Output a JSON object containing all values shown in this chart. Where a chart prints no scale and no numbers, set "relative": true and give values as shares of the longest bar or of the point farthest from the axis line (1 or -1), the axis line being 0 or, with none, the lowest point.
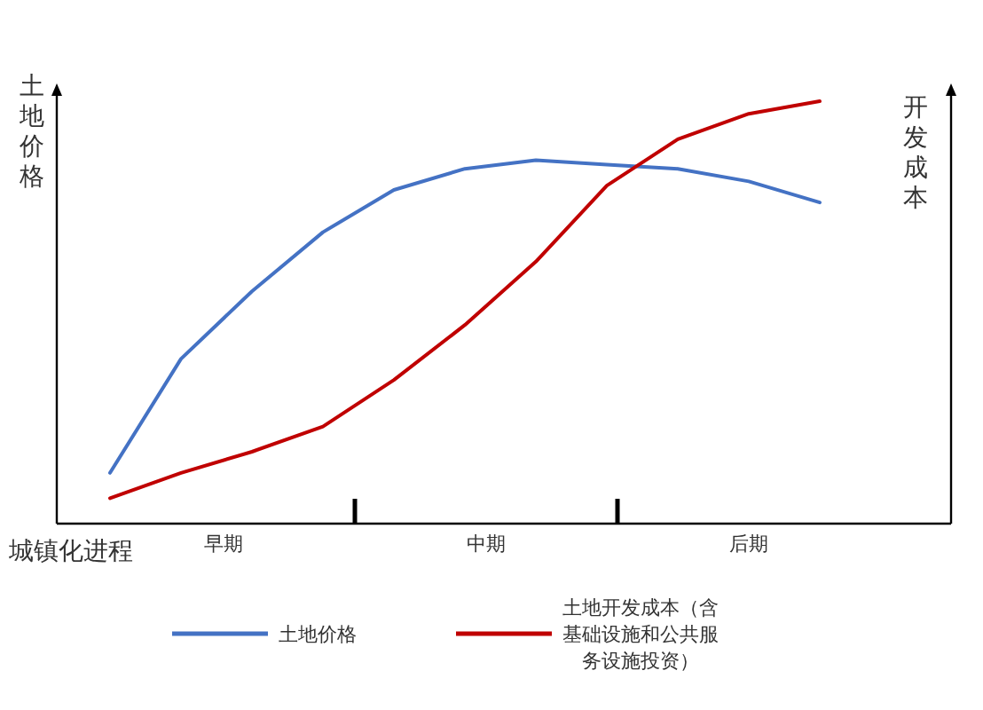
{
  "chart_data": {
    "type": "line",
    "relative": true,
    "xlabel": "城镇化进程",
    "ylabel": "土地价格",
    "y2label": "开发成本",
    "legend": "bottom",
    "categories": [
      null,
      null,
      null,
      null,
      null,
      null,
      null,
      null,
      null,
      null,
      null
    ],
    "annotations": [
      "早期",
      "中期",
      "后期"
    ],
    "series": [
      {
        "name": "土地价格",
        "color": "#4472c4",
        "values": [
          0.12,
          0.39,
          0.55,
          0.69,
          0.79,
          0.84,
          0.86,
          0.85,
          0.84,
          0.81,
          0.76
        ]
      },
      {
        "name": "土地开发成本（含基础设施和公共服务设施投资）",
        "color": "#c00000",
        "values": [
          0.06,
          0.12,
          0.17,
          0.23,
          0.34,
          0.47,
          0.62,
          0.8,
          0.91,
          0.97,
          1
        ]
      }
    ]
  }
}
